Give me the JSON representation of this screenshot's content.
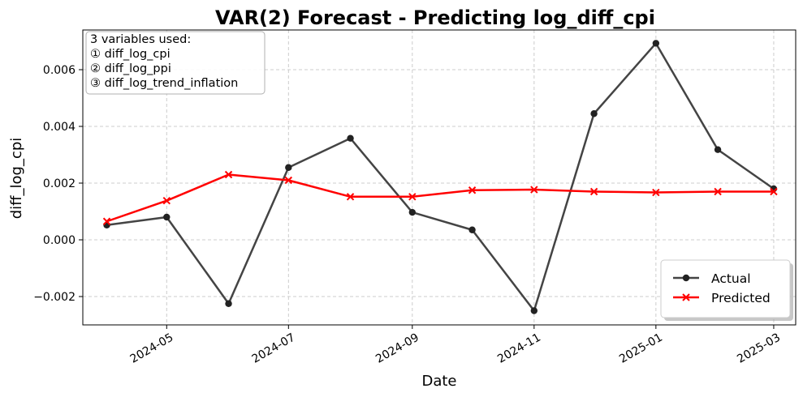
{
  "chart_data": {
    "type": "line",
    "title": "VAR(2) Forecast - Predicting log_diff_cpi",
    "xlabel": "Date",
    "ylabel": "diff_log_cpi",
    "x_dates": [
      "2024-04-01",
      "2024-05-01",
      "2024-06-01",
      "2024-07-01",
      "2024-08-01",
      "2024-09-01",
      "2024-10-01",
      "2024-11-01",
      "2024-12-01",
      "2025-01-01",
      "2025-02-01",
      "2025-03-01"
    ],
    "x_range": [
      "2024-03-20",
      "2025-03-12"
    ],
    "xticks": [
      "2024-05",
      "2024-07",
      "2024-09",
      "2024-11",
      "2025-01",
      "2025-03"
    ],
    "ylim": [
      -0.003,
      0.0074
    ],
    "yticks": [
      -0.002,
      0.0,
      0.002,
      0.004,
      0.006
    ],
    "ytick_labels": [
      "−0.002",
      "0.000",
      "0.002",
      "0.004",
      "0.006"
    ],
    "grid": true,
    "legend_position": "lower-right",
    "series": [
      {
        "name": "Actual",
        "color": "#444444",
        "marker": "circle",
        "values": [
          0.00052,
          0.0008,
          -0.00225,
          0.00255,
          0.00358,
          0.00097,
          0.00035,
          -0.0025,
          0.00445,
          0.00693,
          0.00318,
          0.0018
        ]
      },
      {
        "name": "Predicted",
        "color": "#ff0000",
        "marker": "x",
        "values": [
          0.00065,
          0.00138,
          0.0023,
          0.0021,
          0.00152,
          0.00152,
          0.00175,
          0.00177,
          0.0017,
          0.00167,
          0.0017,
          0.0017
        ]
      }
    ],
    "annotation": {
      "lines": [
        "3 variables used:",
        "① diff_log_cpi",
        "② diff_log_ppi",
        "③ diff_log_trend_inflation"
      ]
    }
  }
}
